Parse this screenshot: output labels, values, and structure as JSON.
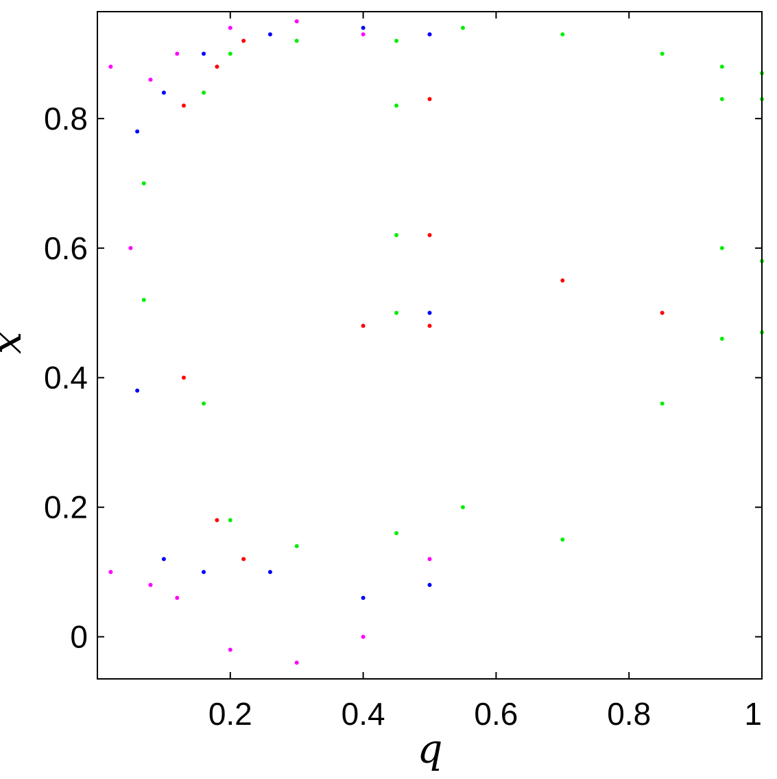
{
  "chart_data": {
    "type": "scatter",
    "title": "",
    "xlabel": "q",
    "ylabel": "x",
    "xlim": [
      0.0,
      1.0
    ],
    "ylim": [
      -0.065,
      0.965
    ],
    "grid": false,
    "legend": "none",
    "x_ticks": [
      0.2,
      0.4,
      0.6,
      0.8,
      1.0
    ],
    "x_tick_labels": [
      "0.2",
      "0.4",
      "0.6",
      "0.8",
      "1"
    ],
    "y_ticks": [
      0.0,
      0.2,
      0.4,
      0.6,
      0.8
    ],
    "y_tick_labels": [
      "0",
      "0.2",
      "0.4",
      "0.6",
      "0.8"
    ],
    "series": [
      {
        "color": "#ff00ff",
        "q_range": [
          0.0,
          0.52
        ],
        "points": [
          [
            0.02,
            0.88
          ],
          [
            0.02,
            0.1
          ],
          [
            0.05,
            0.6
          ],
          [
            0.08,
            0.08
          ],
          [
            0.08,
            0.86
          ],
          [
            0.12,
            0.9
          ],
          [
            0.12,
            0.06
          ],
          [
            0.2,
            0.94
          ],
          [
            0.2,
            -0.02
          ],
          [
            0.3,
            0.95
          ],
          [
            0.3,
            -0.04
          ],
          [
            0.4,
            0.93
          ],
          [
            0.4,
            0.0
          ],
          [
            0.5,
            0.93
          ],
          [
            0.5,
            0.12
          ]
        ]
      },
      {
        "color": "#0000ff",
        "q_range": [
          0.05,
          0.52
        ],
        "points": [
          [
            0.06,
            0.78
          ],
          [
            0.06,
            0.38
          ],
          [
            0.1,
            0.84
          ],
          [
            0.1,
            0.12
          ],
          [
            0.16,
            0.9
          ],
          [
            0.16,
            0.1
          ],
          [
            0.26,
            0.93
          ],
          [
            0.26,
            0.1
          ],
          [
            0.4,
            0.94
          ],
          [
            0.4,
            0.06
          ],
          [
            0.5,
            0.93
          ],
          [
            0.5,
            0.08
          ],
          [
            0.5,
            0.5
          ]
        ]
      },
      {
        "color": "#ff0000",
        "q_range": [
          0.12,
          0.9
        ],
        "points": [
          [
            0.13,
            0.82
          ],
          [
            0.13,
            0.4
          ],
          [
            0.18,
            0.88
          ],
          [
            0.18,
            0.18
          ],
          [
            0.22,
            0.92
          ],
          [
            0.22,
            0.12
          ],
          [
            0.4,
            0.48
          ],
          [
            0.5,
            0.48
          ],
          [
            0.5,
            0.83
          ],
          [
            0.5,
            0.62
          ],
          [
            0.7,
            0.55
          ],
          [
            0.85,
            0.5
          ]
        ]
      },
      {
        "color": "#00ee00",
        "q_range": [
          0.06,
          1.0
        ],
        "points": [
          [
            0.07,
            0.7
          ],
          [
            0.07,
            0.52
          ],
          [
            0.16,
            0.84
          ],
          [
            0.16,
            0.36
          ],
          [
            0.2,
            0.9
          ],
          [
            0.2,
            0.18
          ],
          [
            0.3,
            0.92
          ],
          [
            0.3,
            0.14
          ],
          [
            0.45,
            0.92
          ],
          [
            0.45,
            0.82
          ],
          [
            0.45,
            0.62
          ],
          [
            0.45,
            0.5
          ],
          [
            0.45,
            0.16
          ],
          [
            0.55,
            0.94
          ],
          [
            0.55,
            0.2
          ],
          [
            0.7,
            0.93
          ],
          [
            0.7,
            0.15
          ],
          [
            0.85,
            0.9
          ],
          [
            0.85,
            0.36
          ],
          [
            0.94,
            0.88
          ],
          [
            0.94,
            0.83
          ],
          [
            0.94,
            0.6
          ],
          [
            0.94,
            0.46
          ],
          [
            1.0,
            0.87
          ],
          [
            1.0,
            0.83
          ],
          [
            1.0,
            0.58
          ],
          [
            1.0,
            0.47
          ]
        ]
      }
    ]
  }
}
